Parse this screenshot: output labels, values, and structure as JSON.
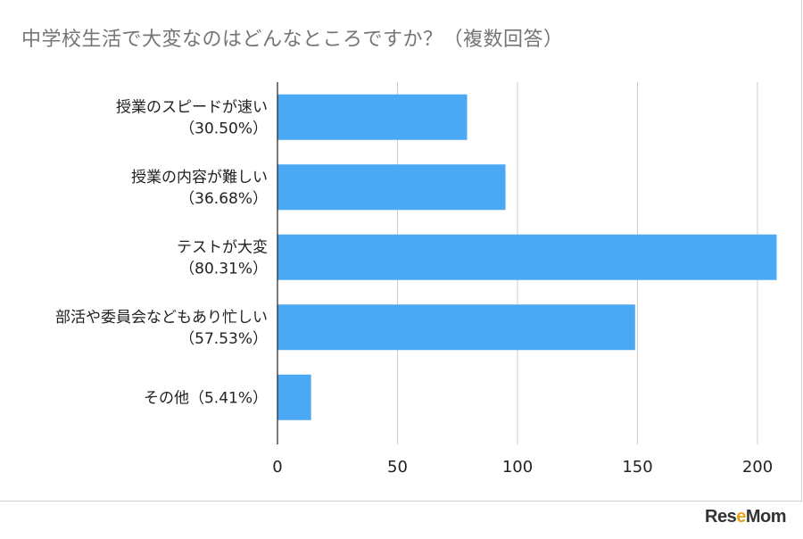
{
  "title": "中学校生活で大変なのはどんなところですか？（複数回答）",
  "watermark": "ReseMom",
  "chart_data": {
    "type": "bar",
    "orientation": "horizontal",
    "title": "中学校生活で大変なのはどんなところですか？（複数回答）",
    "categories": [
      [
        "授業のスピードが速い",
        "（30.50%）"
      ],
      [
        "授業の内容が難しい",
        "（36.68%）"
      ],
      [
        "テストが大変",
        "（80.31%）"
      ],
      [
        "部活や委員会などもあり忙しい",
        "（57.53%）"
      ],
      [
        "その他（5.41%）"
      ]
    ],
    "values": [
      79,
      95,
      208,
      149,
      14
    ],
    "xlim": [
      0,
      210
    ],
    "xticks": [
      0,
      50,
      100,
      150,
      200
    ],
    "bar_color": "#4aa8f5",
    "grid": true,
    "legend": "none"
  }
}
